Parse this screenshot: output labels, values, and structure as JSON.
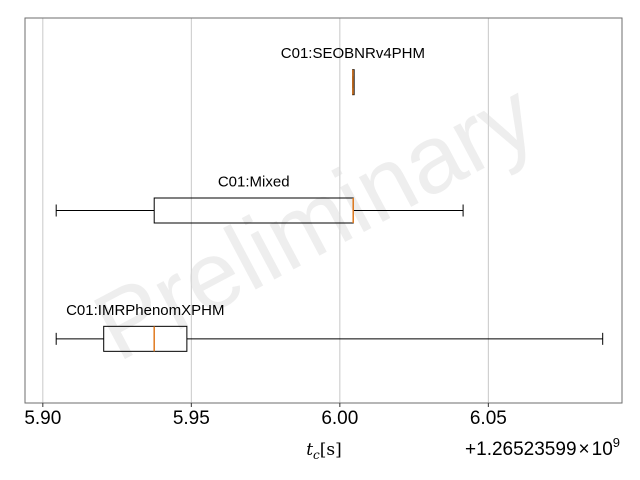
{
  "chart_data": {
    "type": "boxplot",
    "orientation": "horizontal",
    "xlabel_var": "t",
    "xlabel_sub": "c",
    "xlabel_unit": "[s]",
    "offset_base": "+1.26523599",
    "offset_times": "×",
    "offset_pow": "10",
    "offset_exp": "9",
    "xlim": [
      5.894,
      6.095
    ],
    "xticks": [
      5.9,
      5.95,
      6.0,
      6.05
    ],
    "xtick_labels": [
      "5.90",
      "5.95",
      "6.00",
      "6.05"
    ],
    "grid": "vertical",
    "watermark": "Preliminary",
    "series": [
      {
        "name": "C01:SEOBNRv4PHM",
        "whislo": 6.0043,
        "q1": 6.0043,
        "med": 6.0044,
        "q3": 6.0045,
        "whishi": 6.0045
      },
      {
        "name": "C01:Mixed",
        "whislo": 5.9045,
        "q1": 5.9375,
        "med": 6.0045,
        "q3": 6.0045,
        "whishi": 6.0415
      },
      {
        "name": "C01:IMRPhenomXPHM",
        "whislo": 5.9045,
        "q1": 5.9205,
        "med": 5.9375,
        "q3": 5.9485,
        "whishi": 6.0885
      }
    ],
    "colors": {
      "box": "#000000",
      "median": "#e07a1f",
      "grid": "#c8c8c8",
      "watermark": "#d9d9d9"
    }
  }
}
